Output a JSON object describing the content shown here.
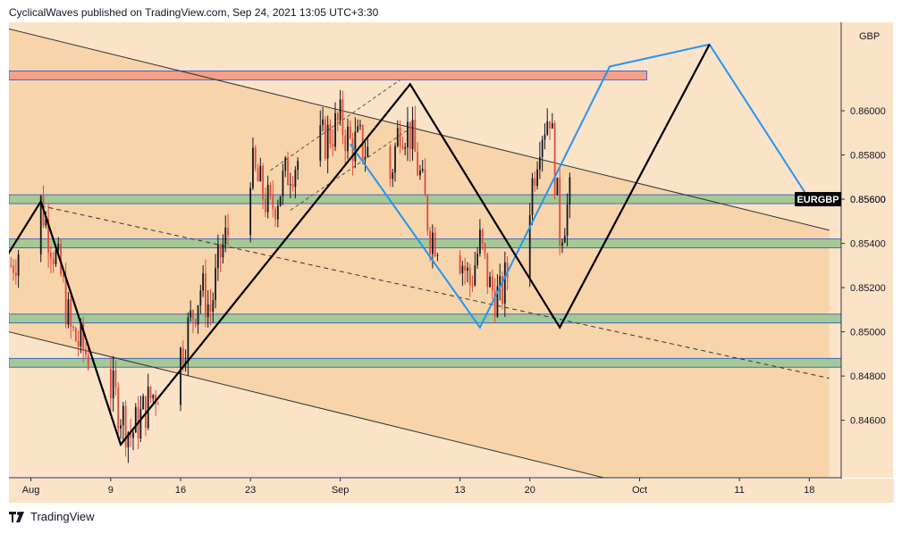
{
  "header": {
    "attribution": "CyclicalWaves published on TradingView.com, Sep 24, 2021 13:05 UTC+3:30"
  },
  "footer": {
    "brand": "TradingView"
  },
  "colors": {
    "background_light": "#fbe3c8",
    "background_channel": "#f8d4ab",
    "green_zone": "#a5c995",
    "red_zone": "#f4a08a",
    "bull_candle": "#131722",
    "bear_candle": "#e04b3a",
    "black_pattern": "#000000",
    "blue_pattern": "#2196f3",
    "symbol_badge_bg": "#000000",
    "symbol_badge_text": "#ffffff"
  },
  "chart_data": {
    "type": "candlestick",
    "symbol": "EURGBP",
    "currency": "GBP",
    "x_labels": [
      "Aug",
      "9",
      "16",
      "23",
      "Sep",
      "13",
      "20",
      "Oct",
      "11",
      "18"
    ],
    "y_ticks": [
      "0.84600",
      "0.84800",
      "0.85000",
      "0.85200",
      "0.85400",
      "0.85600",
      "0.85800",
      "0.86000"
    ],
    "y_range": [
      0.8434,
      0.864
    ],
    "last_price": 0.856,
    "zones": [
      {
        "color": "red",
        "from": 0.8614,
        "to": 0.8618
      },
      {
        "color": "green",
        "from": 0.8558,
        "to": 0.8562
      },
      {
        "color": "green",
        "from": 0.8538,
        "to": 0.8542
      },
      {
        "color": "green",
        "from": 0.8504,
        "to": 0.8508
      },
      {
        "color": "green",
        "from": 0.8484,
        "to": 0.8488
      }
    ],
    "price_path": [
      [
        "Jul 30",
        0.853
      ],
      [
        "Aug 2",
        0.8558
      ],
      [
        "Aug 4",
        0.8525
      ],
      [
        "Aug 5",
        0.85
      ],
      [
        "Aug 9",
        0.8475
      ],
      [
        "Aug 11",
        0.8453
      ],
      [
        "Aug 13",
        0.847
      ],
      [
        "Aug 16",
        0.849
      ],
      [
        "Aug 18",
        0.852
      ],
      [
        "Aug 19",
        0.851
      ],
      [
        "Aug 20",
        0.8535
      ],
      [
        "Aug 23",
        0.8575
      ],
      [
        "Aug 25",
        0.8555
      ],
      [
        "Aug 27",
        0.8575
      ],
      [
        "Aug 30",
        0.8585
      ],
      [
        "Sep 1",
        0.8595
      ],
      [
        "Sep 2",
        0.8585
      ],
      [
        "Sep 3",
        0.8585
      ],
      [
        "Sep 6",
        0.857
      ],
      [
        "Sep 7",
        0.8595
      ],
      [
        "Sep 8",
        0.859
      ],
      [
        "Sep 9",
        0.857
      ],
      [
        "Sep 10",
        0.8545
      ],
      [
        "Sep 13",
        0.8535
      ],
      [
        "Sep 14",
        0.8522
      ],
      [
        "Sep 15",
        0.854
      ],
      [
        "Sep 16",
        0.852
      ],
      [
        "Sep 17",
        0.8515
      ],
      [
        "Sep 20",
        0.856
      ],
      [
        "Sep 21",
        0.859
      ],
      [
        "Sep 22",
        0.86
      ],
      [
        "Sep 23",
        0.8545
      ],
      [
        "Sep 24",
        0.856
      ]
    ],
    "pattern_black": [
      [
        "Jul 29",
        0.853
      ],
      [
        "Aug 2",
        0.8559
      ],
      [
        "Aug 10",
        0.8449
      ],
      [
        "Sep 8",
        0.8612
      ],
      [
        "Sep 23",
        0.8502
      ],
      [
        "Oct 8",
        0.863
      ]
    ],
    "pattern_blue": [
      [
        "Sep 2",
        0.8585
      ],
      [
        "Sep 15",
        0.8502
      ],
      [
        "Sep 28",
        0.862
      ],
      [
        "Oct 8",
        0.863
      ],
      [
        "Oct 18",
        0.856
      ]
    ]
  }
}
